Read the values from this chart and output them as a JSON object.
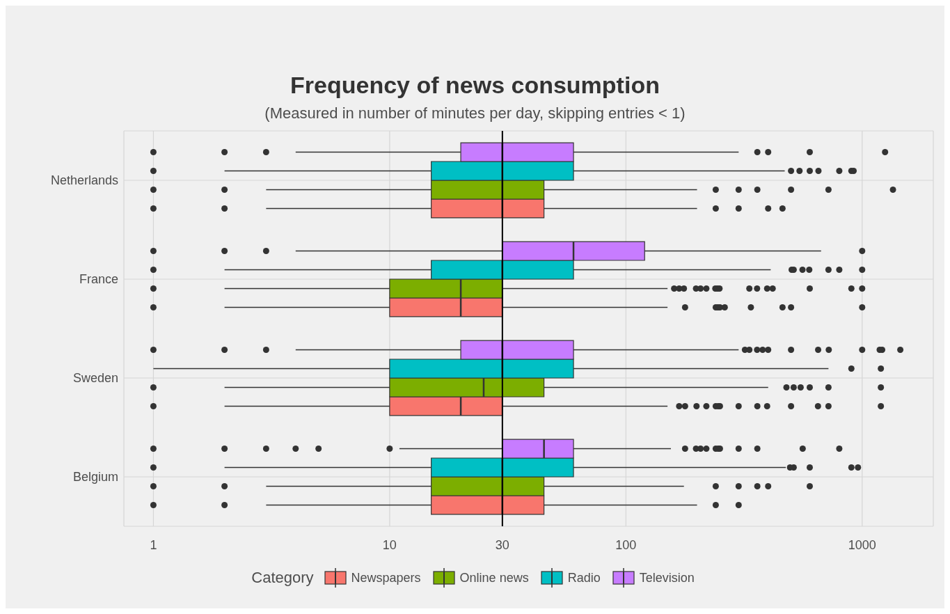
{
  "chart_data": {
    "type": "box",
    "orientation": "horizontal",
    "title": "Frequency of news consumption",
    "subtitle": "(Measured in number of minutes per day, skipping entries < 1)",
    "categories": [
      "Netherlands",
      "France",
      "Sweden",
      "Belgium"
    ],
    "log": "x",
    "xlim": [
      0.75,
      2000
    ],
    "xticks": [
      1,
      10,
      30,
      100,
      1000
    ],
    "grid": true,
    "legend": "bottom",
    "legend_title": "Category",
    "marker": "circle",
    "ref_lines": [
      {
        "axis": "x",
        "value": 30,
        "color": "#000000"
      }
    ],
    "series": [
      {
        "name": "Newspapers",
        "color": "#f8766d",
        "boxes": [
          {
            "low": 3,
            "q1": 15,
            "median": 30,
            "q3": 45,
            "high": 200,
            "outliers": [
              1,
              2,
              240,
              300,
              400,
              460
            ]
          },
          {
            "low": 2,
            "q1": 10,
            "median": 20,
            "q3": 30,
            "high": 150,
            "outliers": [
              1,
              178,
              240,
              245,
              250,
              262,
              338,
              460,
              500,
              1000
            ]
          },
          {
            "low": 2,
            "q1": 10,
            "median": 20,
            "q3": 30,
            "high": 150,
            "outliers": [
              1,
              168,
              178,
              199,
              219,
              240,
              246,
              250,
              300,
              360,
              396,
              500,
              650,
              720,
              1200
            ]
          },
          {
            "low": 3,
            "q1": 15,
            "median": 30,
            "q3": 45,
            "high": 200,
            "outliers": [
              1,
              2,
              240,
              300
            ]
          }
        ]
      },
      {
        "name": "Online news",
        "color": "#7cae00",
        "boxes": [
          {
            "low": 3,
            "q1": 15,
            "median": 30,
            "q3": 45,
            "high": 200,
            "outliers": [
              1,
              2,
              240,
              300,
              360,
              500,
              720,
              1350
            ]
          },
          {
            "low": 2,
            "q1": 10,
            "median": 20,
            "q3": 30,
            "high": 150,
            "outliers": [
              1,
              160,
              168,
              176,
              198,
              207,
              219,
              239,
              244,
              249,
              333,
              359,
              396,
              418,
              600,
              900,
              1000
            ]
          },
          {
            "low": 2,
            "q1": 10,
            "median": 25,
            "q3": 45,
            "high": 400,
            "outliers": [
              1,
              478,
              513,
              549,
              600,
              720,
              1200
            ]
          },
          {
            "low": 3,
            "q1": 15,
            "median": 30,
            "q3": 45,
            "high": 176,
            "outliers": [
              1,
              2,
              240,
              300,
              360,
              400,
              600
            ]
          }
        ]
      },
      {
        "name": "Radio",
        "color": "#00bfc4",
        "boxes": [
          {
            "low": 2,
            "q1": 15,
            "median": 30,
            "q3": 60,
            "high": 470,
            "outliers": [
              1,
              500,
              543,
              600,
              653,
              800,
              900,
              920
            ]
          },
          {
            "low": 2,
            "q1": 15,
            "median": 30,
            "q3": 60,
            "high": 410,
            "outliers": [
              1,
              503,
              513,
              559,
              597,
              720,
              800,
              1000
            ]
          },
          {
            "low": 1,
            "q1": 10,
            "median": 30,
            "q3": 60,
            "high": 720,
            "outliers": [
              900,
              1200
            ]
          },
          {
            "low": 2,
            "q1": 15,
            "median": 30,
            "q3": 60,
            "high": 475,
            "outliers": [
              1,
              495,
              513,
              600,
              900,
              960
            ]
          }
        ]
      },
      {
        "name": "Television",
        "color": "#c77cff",
        "boxes": [
          {
            "low": 4,
            "q1": 20,
            "median": 30,
            "q3": 60,
            "high": 300,
            "outliers": [
              1,
              2,
              3,
              360,
              400,
              600,
              1250
            ]
          },
          {
            "low": 4,
            "q1": 30,
            "median": 60,
            "q3": 120,
            "high": 670,
            "outliers": [
              1,
              2,
              3,
              1000
            ]
          },
          {
            "low": 4,
            "q1": 20,
            "median": 30,
            "q3": 60,
            "high": 300,
            "outliers": [
              1,
              2,
              3,
              319,
              333,
              359,
              379,
              400,
              500,
              651,
              722,
              1000,
              1186,
              1215,
              1450
            ]
          },
          {
            "low": 11,
            "q1": 30,
            "median": 45,
            "q3": 60,
            "high": 155,
            "outliers": [
              1,
              2,
              3,
              4,
              5,
              10,
              178,
              198,
              207,
              219,
              240,
              246,
              250,
              300,
              360,
              560,
              800
            ]
          }
        ]
      }
    ]
  }
}
